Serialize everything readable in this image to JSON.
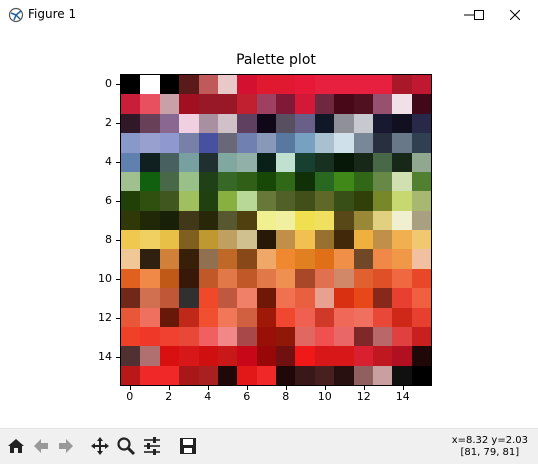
{
  "window": {
    "title": "Figure 1"
  },
  "plot": {
    "title": "Palette plot",
    "xticks": [
      "0",
      "2",
      "4",
      "6",
      "8",
      "10",
      "12",
      "14"
    ],
    "yticks": [
      "0",
      "2",
      "4",
      "6",
      "8",
      "10",
      "12",
      "14"
    ]
  },
  "status": {
    "coords": "x=8.32 y=2.03",
    "pixel": "[81, 79, 81]"
  },
  "toolbar": {
    "buttons": [
      "home-icon",
      "back-icon",
      "forward-icon",
      "pan-icon",
      "zoom-icon",
      "configure-icon",
      "save-icon"
    ]
  },
  "chart_data": {
    "type": "heatmap",
    "title": "Palette plot",
    "xlim": [
      -0.5,
      15.5
    ],
    "ylim": [
      15.5,
      -0.5
    ],
    "rows": [
      [
        "#000000",
        "#ffffff",
        "#000000",
        "#5a1a1a",
        "#c05a5a",
        "#e8c8c8",
        "#d41030",
        "#e01830",
        "#e01830",
        "#e81838",
        "#e82040",
        "#e82040",
        "#e82040",
        "#e82040",
        "#a81828",
        "#c01830"
      ],
      [
        "#c81e3a",
        "#e85060",
        "#c8a0a8",
        "#a01020",
        "#981828",
        "#981828",
        "#c02030",
        "#a04060",
        "#801838",
        "#d41838",
        "#702840",
        "#480818",
        "#501020",
        "#985070",
        "#f0e0e8",
        "#400818"
      ],
      [
        "#301828",
        "#684058",
        "#886890",
        "#f0d0e0",
        "#a890a0",
        "#d0c0c8",
        "#604060",
        "#100818",
        "#585060",
        "#686088",
        "#101828",
        "#909098",
        "#c8c8d0",
        "#181830",
        "#101020",
        "#282848"
      ],
      [
        "#8898c8",
        "#98a0d0",
        "#9098d0",
        "#7880a8",
        "#4850a0",
        "#686878",
        "#7080b0",
        "#8898b8",
        "#5878a0",
        "#78a0c0",
        "#a8c0d0",
        "#d0e0e8",
        "#788898",
        "#283040",
        "#687888",
        "#304050"
      ],
      [
        "#6080b0",
        "#102020",
        "#486060",
        "#78a0a0",
        "#203030",
        "#80a8a0",
        "#90b0a8",
        "#082018",
        "#c0e0d0",
        "#184030",
        "#183020",
        "#081808",
        "#182818",
        "#486848",
        "#182818",
        "#90a890"
      ],
      [
        "#a0c090",
        "#106010",
        "#486848",
        "#98c088",
        "#204018",
        "#386828",
        "#306018",
        "#184808",
        "#306818",
        "#103008",
        "#286820",
        "#408818",
        "#306818",
        "#688848",
        "#d0e0b0",
        "#508030"
      ],
      [
        "#204008",
        "#305010",
        "#405820",
        "#a0c060",
        "#204010",
        "#88b040",
        "#b8d898",
        "#687838",
        "#506028",
        "#405018",
        "#606828",
        "#385018",
        "#304008",
        "#788828",
        "#c8d870",
        "#a8b870"
      ],
      [
        "#303808",
        "#202808",
        "#182008",
        "#403818",
        "#282808",
        "#585830",
        "#504010",
        "#f0f090",
        "#f0f0a0",
        "#f0e050",
        "#f0e060",
        "#584818",
        "#988838",
        "#e0d080",
        "#f0f0d0",
        "#a8a080"
      ],
      [
        "#f0c850",
        "#f0d060",
        "#e8c048",
        "#806020",
        "#c09830",
        "#c0a060",
        "#d0c090",
        "#281808",
        "#c09048",
        "#f0c050",
        "#987030",
        "#402808",
        "#f0b040",
        "#c09048",
        "#f0b050",
        "#f0c870"
      ],
      [
        "#f0c898",
        "#302010",
        "#d08038",
        "#382008",
        "#907050",
        "#c06828",
        "#884818",
        "#f0a868",
        "#f08830",
        "#e08020",
        "#e07018",
        "#f09048",
        "#704828",
        "#f08848",
        "#f09848",
        "#f0c0a0"
      ],
      [
        "#e06020",
        "#f08848",
        "#c05818",
        "#381808",
        "#c05828",
        "#e07848",
        "#c05828",
        "#e07848",
        "#f09050",
        "#a84828",
        "#e07050",
        "#d08868",
        "#e06030",
        "#e05028",
        "#f06840",
        "#e84828"
      ],
      [
        "#702818",
        "#d07050",
        "#c05838",
        "#303030",
        "#f04828",
        "#c05840",
        "#f08068",
        "#701808",
        "#f07050",
        "#e86040",
        "#e8a090",
        "#d83010",
        "#e84818",
        "#882818",
        "#e84030",
        "#f06040"
      ],
      [
        "#e85838",
        "#f07060",
        "#681808",
        "#c02818",
        "#f05030",
        "#f07858",
        "#d06040",
        "#a01808",
        "#f04830",
        "#f06050",
        "#d03828",
        "#f06858",
        "#f07060",
        "#e84838",
        "#d02818",
        "#e84030"
      ],
      [
        "#f04028",
        "#f03828",
        "#f04030",
        "#e84838",
        "#f06060",
        "#f08888",
        "#a84848",
        "#981008",
        "#901808",
        "#e06860",
        "#f05050",
        "#e86868",
        "#802828",
        "#b86868",
        "#e04040",
        "#c82020"
      ],
      [
        "#503030",
        "#b07070",
        "#d81010",
        "#d81818",
        "#d01010",
        "#c81818",
        "#c80818",
        "#980808",
        "#701010",
        "#f01818",
        "#d81818",
        "#d81818",
        "#d82030",
        "#c01820",
        "#b01020",
        "#200808"
      ],
      [
        "#b81818",
        "#f02828",
        "#f02828",
        "#a81818",
        "#a82020",
        "#200808",
        "#e01818",
        "#f02828",
        "#200808",
        "#381818",
        "#482020",
        "#281010",
        "#906060",
        "#c8a0a0",
        "#101010",
        "#000000"
      ]
    ]
  }
}
